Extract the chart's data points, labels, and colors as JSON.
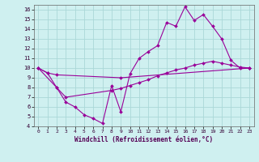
{
  "xlabel": "Windchill (Refroidissement éolien,°C)",
  "bg_color": "#cff0f0",
  "grid_color": "#aad8d8",
  "line_color": "#990099",
  "xlim": [
    -0.5,
    23.5
  ],
  "ylim": [
    4,
    16.5
  ],
  "xticks": [
    0,
    1,
    2,
    3,
    4,
    5,
    6,
    7,
    8,
    9,
    10,
    11,
    12,
    13,
    14,
    15,
    16,
    17,
    18,
    19,
    20,
    21,
    22,
    23
  ],
  "yticks": [
    4,
    5,
    6,
    7,
    8,
    9,
    10,
    11,
    12,
    13,
    14,
    15,
    16
  ],
  "line1_x": [
    0,
    1,
    2,
    3,
    4,
    5,
    6,
    7,
    8,
    9,
    10,
    11,
    12,
    13,
    14,
    15,
    16,
    17,
    18,
    19,
    20,
    21,
    22,
    23
  ],
  "line1_y": [
    10,
    9.5,
    8.0,
    6.5,
    6.0,
    5.2,
    4.8,
    4.3,
    8.2,
    5.5,
    9.4,
    11.0,
    11.7,
    12.3,
    14.7,
    14.3,
    16.3,
    14.9,
    15.5,
    14.3,
    13.0,
    10.8,
    10.0,
    10.0
  ],
  "line2_x": [
    0,
    1,
    2,
    9,
    23
  ],
  "line2_y": [
    10,
    9.5,
    9.3,
    9.0,
    10.0
  ],
  "line3_x": [
    0,
    2,
    3,
    8,
    9,
    10,
    11,
    12,
    13,
    14,
    15,
    16,
    17,
    18,
    19,
    20,
    21,
    22,
    23
  ],
  "line3_y": [
    10,
    8.0,
    7.0,
    7.7,
    7.9,
    8.2,
    8.5,
    8.8,
    9.2,
    9.5,
    9.8,
    10.0,
    10.3,
    10.5,
    10.7,
    10.5,
    10.3,
    10.1,
    10.0
  ]
}
